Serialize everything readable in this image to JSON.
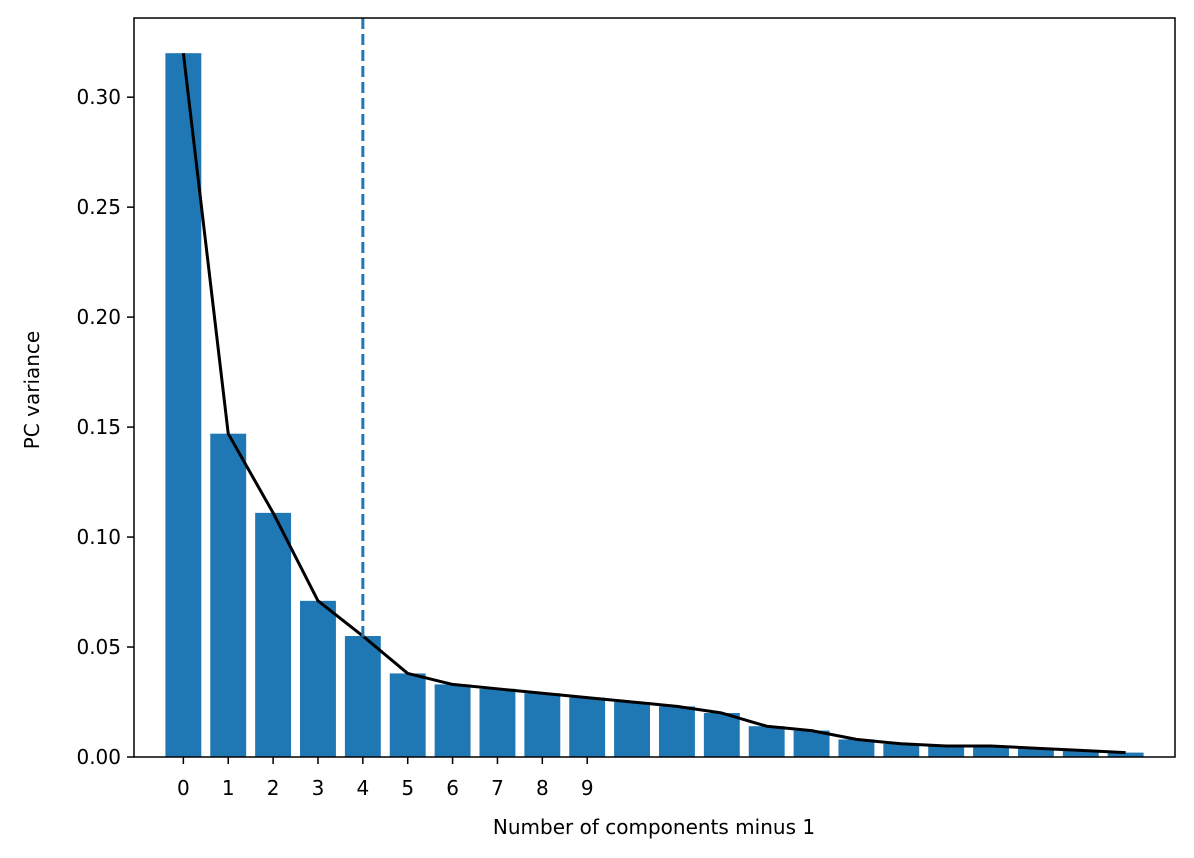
{
  "chart_data": {
    "type": "bar",
    "title": "",
    "xlabel": "Number of components minus 1",
    "ylabel": "PC variance",
    "x": [
      0,
      1,
      2,
      3,
      4,
      5,
      6,
      7,
      8,
      9,
      10,
      11,
      12,
      13,
      14,
      15,
      16,
      17,
      18,
      19,
      20,
      21
    ],
    "values": [
      0.32,
      0.147,
      0.111,
      0.071,
      0.055,
      0.038,
      0.033,
      0.031,
      0.029,
      0.027,
      0.025,
      0.023,
      0.02,
      0.014,
      0.012,
      0.008,
      0.006,
      0.005,
      0.005,
      0.004,
      0.003,
      0.002
    ],
    "line_values": [
      0.32,
      0.147,
      0.111,
      0.071,
      0.055,
      0.038,
      0.033,
      0.031,
      0.029,
      0.027,
      0.025,
      0.023,
      0.02,
      0.014,
      0.012,
      0.008,
      0.006,
      0.005,
      0.005,
      0.004,
      0.003,
      0.002
    ],
    "xticks": [
      "0",
      "1",
      "2",
      "3",
      "4",
      "5",
      "6",
      "7",
      "8",
      "9"
    ],
    "yticks": [
      0.0,
      0.05,
      0.1,
      0.15,
      0.2,
      0.25,
      0.3
    ],
    "ytick_labels": [
      "0.00",
      "0.05",
      "0.10",
      "0.15",
      "0.20",
      "0.25",
      "0.30"
    ],
    "xlim": [
      -1.1,
      22.1
    ],
    "ylim": [
      0,
      0.336
    ],
    "vline_x": 4,
    "vline_style": "dashed",
    "grid": false,
    "legend": "none",
    "colors": {
      "bar": "#1f77b4",
      "line": "#000000",
      "vline": "#1f77b4",
      "axes": "#000000"
    }
  }
}
